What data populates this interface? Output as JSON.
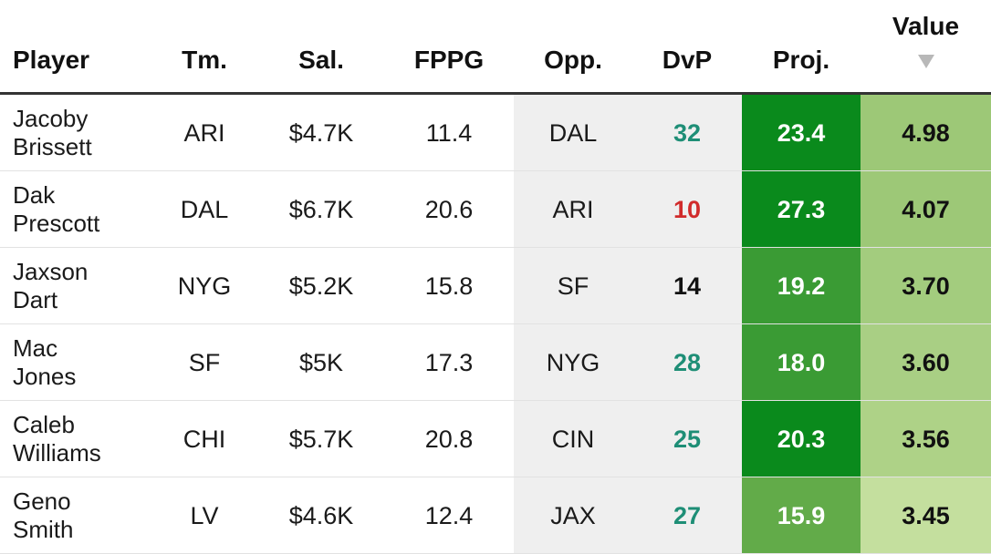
{
  "columns": {
    "player": "Player",
    "team": "Tm.",
    "salary": "Sal.",
    "fppg": "FPPG",
    "opp": "Opp.",
    "dvp": "DvP",
    "proj": "Proj.",
    "value": "Value"
  },
  "sort": {
    "column": "Value",
    "direction": "descending",
    "icon": "sort-down-triangle"
  },
  "colors": {
    "dvp_favorable": "#1e8e76",
    "dvp_unfavorable": "#d12b2b",
    "dvp_neutral": "#111111"
  },
  "rows": [
    {
      "first": "Jacoby",
      "last": "Brissett",
      "team": "ARI",
      "salary": "$4.7K",
      "fppg": "11.4",
      "opp": "DAL",
      "dvp": "32",
      "dvp_color": "#1e8e76",
      "proj": "23.4",
      "proj_bg": "#0a8a1c",
      "value": "4.98",
      "value_bg": "#9dc877"
    },
    {
      "first": "Dak",
      "last": "Prescott",
      "team": "DAL",
      "salary": "$6.7K",
      "fppg": "20.6",
      "opp": "ARI",
      "dvp": "10",
      "dvp_color": "#d12b2b",
      "proj": "27.3",
      "proj_bg": "#0a8a1c",
      "value": "4.07",
      "value_bg": "#9dc877"
    },
    {
      "first": "Jaxson",
      "last": "Dart",
      "team": "NYG",
      "salary": "$5.2K",
      "fppg": "15.8",
      "opp": "SF",
      "dvp": "14",
      "dvp_color": "#111111",
      "proj": "19.2",
      "proj_bg": "#3a9b34",
      "value": "3.70",
      "value_bg": "#a3cc7e"
    },
    {
      "first": "Mac",
      "last": "Jones",
      "team": "SF",
      "salary": "$5K",
      "fppg": "17.3",
      "opp": "NYG",
      "dvp": "28",
      "dvp_color": "#1e8e76",
      "proj": "18.0",
      "proj_bg": "#3a9b34",
      "value": "3.60",
      "value_bg": "#a9cf84"
    },
    {
      "first": "Caleb",
      "last": "Williams",
      "team": "CHI",
      "salary": "$5.7K",
      "fppg": "20.8",
      "opp": "CIN",
      "dvp": "25",
      "dvp_color": "#1e8e76",
      "proj": "20.3",
      "proj_bg": "#0a8a1c",
      "value": "3.56",
      "value_bg": "#aed287"
    },
    {
      "first": "Geno",
      "last": "Smith",
      "team": "LV",
      "salary": "$4.6K",
      "fppg": "12.4",
      "opp": "JAX",
      "dvp": "27",
      "dvp_color": "#1e8e76",
      "proj": "15.9",
      "proj_bg": "#62ab49",
      "value": "3.45",
      "value_bg": "#c4df9e"
    }
  ]
}
